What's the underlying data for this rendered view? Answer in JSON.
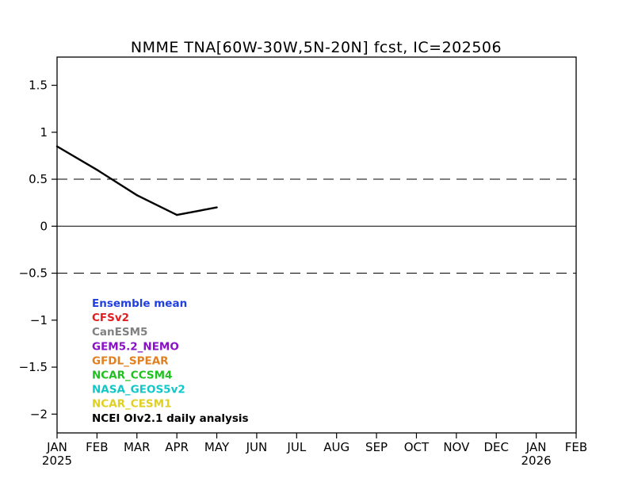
{
  "chart_data": {
    "type": "line",
    "title": "NMME TNA[60W-30W,5N-20N] fcst, IC=202506",
    "xlabel": "",
    "ylabel": "",
    "x_categories": [
      "JAN",
      "FEB",
      "MAR",
      "APR",
      "MAY",
      "JUN",
      "JUL",
      "AUG",
      "SEP",
      "OCT",
      "NOV",
      "DEC",
      "JAN",
      "FEB"
    ],
    "year_labels": [
      {
        "index": 0,
        "label": "2025"
      },
      {
        "index": 12,
        "label": "2026"
      }
    ],
    "ylim": [
      -2.2,
      1.8
    ],
    "y_ticks": [
      {
        "value": 1.5,
        "label": "1.5"
      },
      {
        "value": 1,
        "label": "1"
      },
      {
        "value": 0.5,
        "label": "0.5"
      },
      {
        "value": 0,
        "label": "0"
      },
      {
        "value": -0.5,
        "label": "-0.5"
      },
      {
        "value": -1,
        "label": "-1"
      },
      {
        "value": -1.5,
        "label": "-1.5"
      },
      {
        "value": -2,
        "label": "-2"
      }
    ],
    "reference_lines": [
      {
        "value": 0.5,
        "style": "dashed"
      },
      {
        "value": 0,
        "style": "solid"
      },
      {
        "value": -0.5,
        "style": "dashed"
      }
    ],
    "grid": false,
    "legend_position": "bottom-left",
    "legend": [
      {
        "label": "Ensemble mean",
        "color": "#1f3fe0"
      },
      {
        "label": "CFSv2",
        "color": "#e02020"
      },
      {
        "label": "CanESM5",
        "color": "#808080"
      },
      {
        "label": "GEM5.2_NEMO",
        "color": "#8a10c8"
      },
      {
        "label": "GFDL_SPEAR",
        "color": "#e08020"
      },
      {
        "label": "NCAR_CCSM4",
        "color": "#20c020"
      },
      {
        "label": "NASA_GEOS5v2",
        "color": "#10c8c8"
      },
      {
        "label": "NCAR_CESM1",
        "color": "#e0d020"
      },
      {
        "label": "NCEI OIv2.1 daily analysis",
        "color": "#000000"
      }
    ],
    "series": [
      {
        "color": "#000000",
        "x": [
          0,
          1,
          2,
          3,
          4
        ],
        "values": [
          0.85,
          0.6,
          0.33,
          0.12,
          0.2
        ]
      }
    ]
  }
}
